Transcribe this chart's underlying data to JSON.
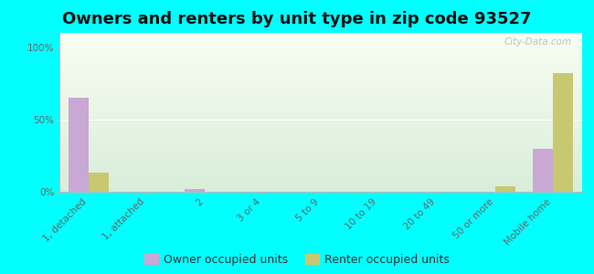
{
  "title": "Owners and renters by unit type in zip code 93527",
  "categories": [
    "1, detached",
    "1, attached",
    "2",
    "3 or 4",
    "5 to 9",
    "10 to 19",
    "20 to 49",
    "50 or more",
    "Mobile home"
  ],
  "owner_values": [
    65,
    0,
    2,
    0,
    0,
    0,
    0,
    0,
    30
  ],
  "renter_values": [
    13,
    0,
    0,
    0,
    0,
    0,
    0,
    4,
    82
  ],
  "owner_color": "#c9a8d4",
  "renter_color": "#c8c870",
  "outer_bg": "#00ffff",
  "ylabel_ticks": [
    0,
    50,
    100
  ],
  "ylabel_labels": [
    "0%",
    "50%",
    "100%"
  ],
  "ylim_max": 110,
  "bar_width": 0.35,
  "title_fontsize": 13,
  "tick_fontsize": 7.5,
  "legend_fontsize": 9,
  "watermark": "City-Data.com",
  "grad_top": "#f8fdf2",
  "grad_bottom": "#d8edd8"
}
